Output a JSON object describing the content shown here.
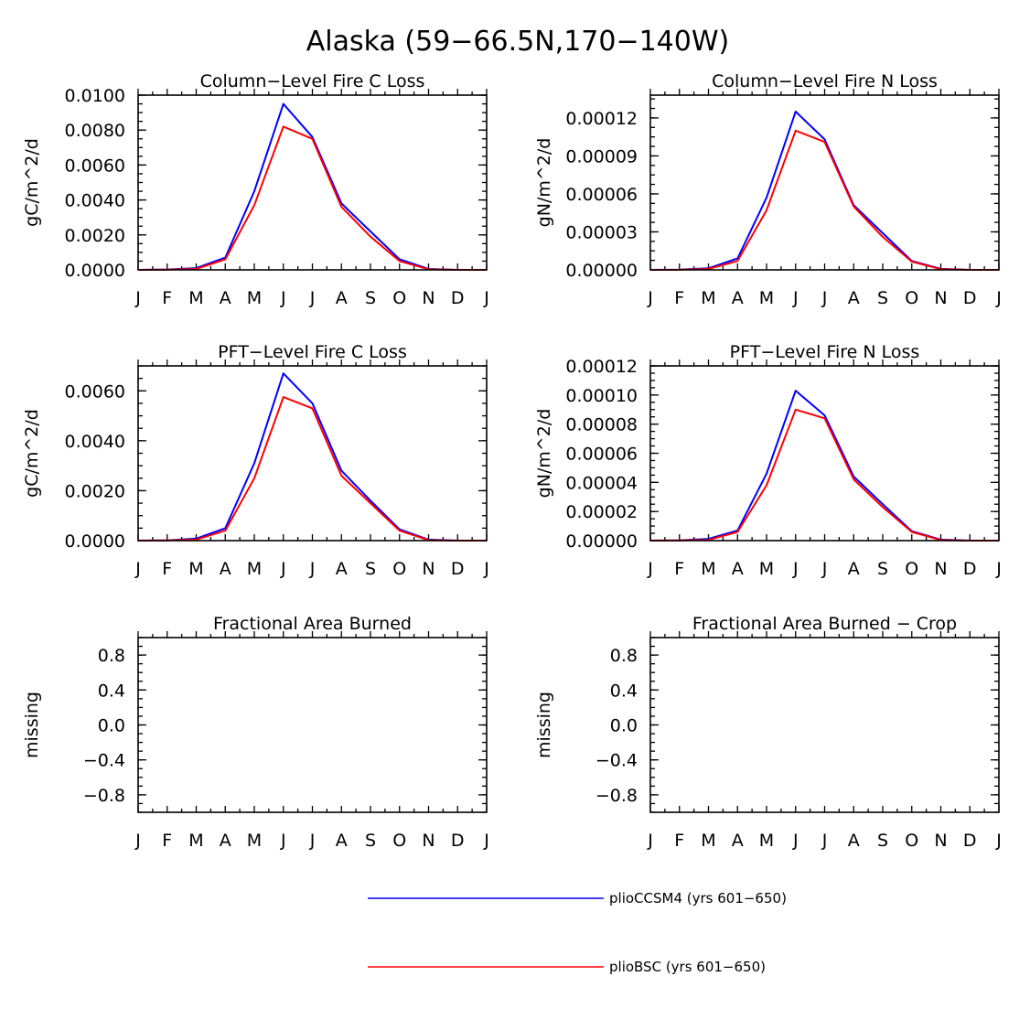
{
  "title": "Alaska (59−66.5N,170−140W)",
  "colors": {
    "pliocssm4": "#0000ff",
    "pliobsc": "#ff0000"
  },
  "legend": [
    {
      "label": "plioCCSM4 (yrs 601−650)",
      "color": "#0000ff"
    },
    {
      "label": "plioBSC (yrs 601−650)",
      "color": "#ff0000"
    }
  ],
  "chart_data": [
    {
      "type": "line",
      "title": "Column−Level Fire C Loss",
      "ylabel": "gC/m^2/d",
      "categories": [
        "J",
        "F",
        "M",
        "A",
        "M",
        "J",
        "J",
        "A",
        "S",
        "O",
        "N",
        "D",
        "J"
      ],
      "ylim": [
        0,
        0.01
      ],
      "yticks": [
        "0.0000",
        "0.0020",
        "0.0040",
        "0.0060",
        "0.0080",
        "0.0100"
      ],
      "series": [
        {
          "name": "plioCCSM4 (yrs 601−650)",
          "values": [
            0,
            2e-05,
            0.0001,
            0.0007,
            0.0045,
            0.0095,
            0.0076,
            0.0038,
            0.0022,
            0.0006,
            5e-05,
            0,
            0
          ]
        },
        {
          "name": "plioBSC (yrs 601−650)",
          "values": [
            0,
            1e-05,
            5e-05,
            0.0006,
            0.0037,
            0.0082,
            0.0075,
            0.0036,
            0.0019,
            0.0005,
            3e-05,
            0,
            0
          ]
        }
      ]
    },
    {
      "type": "line",
      "title": "Column−Level Fire N Loss",
      "ylabel": "gN/m^2/d",
      "categories": [
        "J",
        "F",
        "M",
        "A",
        "M",
        "J",
        "J",
        "A",
        "S",
        "O",
        "N",
        "D",
        "J"
      ],
      "ylim": [
        0,
        0.000138
      ],
      "yticks": [
        "0.00000",
        "0.00003",
        "0.00006",
        "0.00009",
        "0.00012"
      ],
      "series": [
        {
          "name": "plioCCSM4 (yrs 601−650)",
          "values": [
            0,
            2e-07,
            1.2e-06,
            9e-06,
            5.7e-05,
            0.000125,
            0.000103,
            5.1e-05,
            2.9e-05,
            7e-06,
            8e-07,
            0,
            0
          ]
        },
        {
          "name": "plioBSC (yrs 601−650)",
          "values": [
            0,
            1e-07,
            7e-07,
            7e-06,
            4.7e-05,
            0.00011,
            0.000101,
            5e-05,
            2.6e-05,
            6.5e-06,
            5e-07,
            0,
            0
          ]
        }
      ]
    },
    {
      "type": "line",
      "title": "PFT−Level Fire C Loss",
      "ylabel": "gC/m^2/d",
      "categories": [
        "J",
        "F",
        "M",
        "A",
        "M",
        "J",
        "J",
        "A",
        "S",
        "O",
        "N",
        "D",
        "J"
      ],
      "ylim": [
        0,
        0.007
      ],
      "yticks": [
        "0.0000",
        "0.0020",
        "0.0040",
        "0.0060"
      ],
      "series": [
        {
          "name": "plioCCSM4 (yrs 601−650)",
          "values": [
            0,
            1e-05,
            8e-05,
            0.0005,
            0.0031,
            0.0067,
            0.0055,
            0.0028,
            0.0016,
            0.00045,
            4e-05,
            0,
            0
          ]
        },
        {
          "name": "plioBSC (yrs 601−650)",
          "values": [
            0,
            1e-05,
            4e-05,
            0.0004,
            0.0025,
            0.00575,
            0.0053,
            0.0026,
            0.0015,
            0.0004,
            2e-05,
            0,
            0
          ]
        }
      ]
    },
    {
      "type": "line",
      "title": "PFT−Level Fire N Loss",
      "ylabel": "gN/m^2/d",
      "categories": [
        "J",
        "F",
        "M",
        "A",
        "M",
        "J",
        "J",
        "A",
        "S",
        "O",
        "N",
        "D",
        "J"
      ],
      "ylim": [
        0,
        0.00012
      ],
      "yticks": [
        "0.00000",
        "0.00002",
        "0.00004",
        "0.00006",
        "0.00008",
        "0.00010",
        "0.00012"
      ],
      "series": [
        {
          "name": "plioCCSM4 (yrs 601−650)",
          "values": [
            0,
            2e-07,
            1.2e-06,
            7e-06,
            4.6e-05,
            0.000103,
            8.6e-05,
            4.4e-05,
            2.5e-05,
            6.5e-06,
            7e-07,
            0,
            0
          ]
        },
        {
          "name": "plioBSC (yrs 601−650)",
          "values": [
            0,
            1e-07,
            5e-07,
            6e-06,
            3.8e-05,
            9e-05,
            8.4e-05,
            4.2e-05,
            2.3e-05,
            6e-06,
            4e-07,
            0,
            0
          ]
        }
      ]
    },
    {
      "type": "line",
      "title": "Fractional Area Burned",
      "ylabel": "missing",
      "categories": [
        "J",
        "F",
        "M",
        "A",
        "M",
        "J",
        "J",
        "A",
        "S",
        "O",
        "N",
        "D",
        "J"
      ],
      "ylim": [
        -1,
        1
      ],
      "yticks": [
        "−0.8",
        "−0.4",
        "0.0",
        "0.4",
        "0.8"
      ],
      "series": []
    },
    {
      "type": "line",
      "title": "Fractional Area Burned − Crop",
      "ylabel": "missing",
      "categories": [
        "J",
        "F",
        "M",
        "A",
        "M",
        "J",
        "J",
        "A",
        "S",
        "O",
        "N",
        "D",
        "J"
      ],
      "ylim": [
        -1,
        1
      ],
      "yticks": [
        "−0.8",
        "−0.4",
        "0.0",
        "0.4",
        "0.8"
      ],
      "series": []
    }
  ]
}
